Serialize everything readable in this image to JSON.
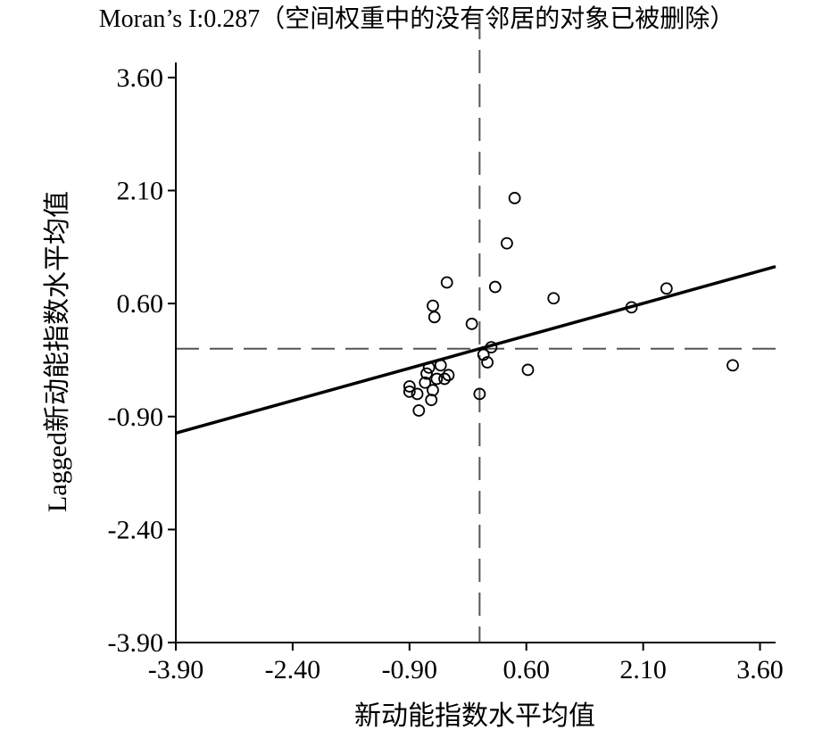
{
  "chart_data": {
    "type": "scatter",
    "title": "Moran’s I:0.287（空间权重中的没有邻居的对象已被删除）",
    "xlabel": "新动能指数水平均值",
    "ylabel": "Lagged新动能指数水平均值",
    "xlim": [
      -3.9,
      3.8
    ],
    "ylim": [
      -3.9,
      3.8
    ],
    "xticks": [
      -3.9,
      -2.4,
      -0.9,
      0.6,
      2.1,
      3.6
    ],
    "yticks": [
      -3.9,
      -2.4,
      -0.9,
      0.6,
      2.1,
      3.6
    ],
    "xtick_labels": [
      "-3.90",
      "-2.40",
      "-0.90",
      "0.60",
      "2.10",
      "3.60"
    ],
    "ytick_labels": [
      "-3.90",
      "-2.40",
      "-0.90",
      "0.60",
      "2.10",
      "3.60"
    ],
    "mean_lines": {
      "x": 0.0,
      "y": 0.0
    },
    "regression": {
      "slope": 0.287,
      "intercept": 0.0
    },
    "points": [
      {
        "x": -0.9,
        "y": -0.5
      },
      {
        "x": -0.9,
        "y": -0.57
      },
      {
        "x": -0.8,
        "y": -0.6
      },
      {
        "x": -0.78,
        "y": -0.82
      },
      {
        "x": -0.7,
        "y": -0.45
      },
      {
        "x": -0.68,
        "y": -0.33
      },
      {
        "x": -0.65,
        "y": -0.25
      },
      {
        "x": -0.6,
        "y": -0.55
      },
      {
        "x": -0.62,
        "y": -0.68
      },
      {
        "x": -0.55,
        "y": -0.4
      },
      {
        "x": -0.5,
        "y": -0.22
      },
      {
        "x": -0.45,
        "y": -0.4
      },
      {
        "x": -0.4,
        "y": -0.35
      },
      {
        "x": -0.42,
        "y": 0.88
      },
      {
        "x": -0.6,
        "y": 0.57
      },
      {
        "x": -0.58,
        "y": 0.42
      },
      {
        "x": -0.1,
        "y": 0.33
      },
      {
        "x": 0.0,
        "y": -0.6
      },
      {
        "x": 0.1,
        "y": -0.18
      },
      {
        "x": 0.15,
        "y": 0.02
      },
      {
        "x": 0.05,
        "y": -0.08
      },
      {
        "x": 0.2,
        "y": 0.82
      },
      {
        "x": 0.35,
        "y": 1.4
      },
      {
        "x": 0.45,
        "y": 2.0
      },
      {
        "x": 0.62,
        "y": -0.28
      },
      {
        "x": 0.95,
        "y": 0.67
      },
      {
        "x": 1.95,
        "y": 0.55
      },
      {
        "x": 2.4,
        "y": 0.8
      },
      {
        "x": 3.25,
        "y": -0.22
      }
    ]
  }
}
